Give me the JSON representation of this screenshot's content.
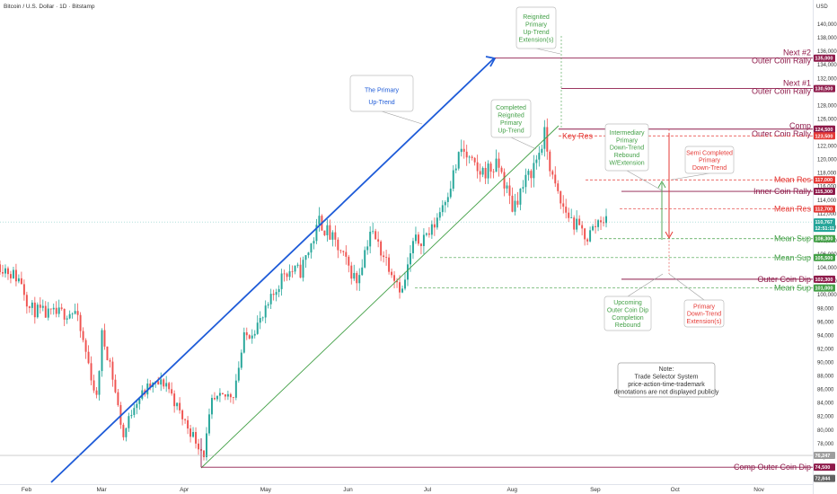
{
  "header": {
    "symbol_title": "Bitcoin / U.S. Dollar · 1D · Bitstamp",
    "currency": "USD"
  },
  "colors": {
    "up": "#26a69a",
    "down": "#ef5350",
    "blue": "#1e5bd8",
    "green": "#43a047",
    "maroon": "#8e1a4a",
    "red": "#e53935"
  },
  "chart_data": {
    "type": "candlestick",
    "title": "",
    "ylim": [
      72000,
      142000
    ],
    "y_ticks": [
      76000,
      78000,
      80000,
      82000,
      84000,
      86000,
      88000,
      90000,
      92000,
      94000,
      96000,
      98000,
      100000,
      102000,
      104000,
      106000,
      108000,
      110000,
      112000,
      114000,
      116000,
      118000,
      120000,
      122000,
      126000,
      128000,
      132000,
      134000,
      136000,
      138000,
      140000
    ],
    "x_ticks": [
      "Feb",
      "Mar",
      "Apr",
      "May",
      "Jun",
      "Jul",
      "Aug",
      "Sep",
      "Oct",
      "Nov"
    ],
    "anchors": [
      [
        "2025-01-23",
        104500
      ],
      [
        "2025-01-31",
        102000
      ],
      [
        "2025-02-03",
        98000
      ],
      [
        "2025-02-10",
        97000
      ],
      [
        "2025-02-20",
        97500
      ],
      [
        "2025-02-24",
        91500
      ],
      [
        "2025-02-28",
        84500
      ],
      [
        "2025-03-02",
        94000
      ],
      [
        "2025-03-05",
        90000
      ],
      [
        "2025-03-10",
        79000
      ],
      [
        "2025-03-14",
        84000
      ],
      [
        "2025-03-20",
        86500
      ],
      [
        "2025-03-26",
        87000
      ],
      [
        "2025-03-31",
        82500
      ],
      [
        "2025-04-06",
        78500
      ],
      [
        "2025-04-09",
        76500
      ],
      [
        "2025-04-12",
        84000
      ],
      [
        "2025-04-20",
        85500
      ],
      [
        "2025-04-24",
        93500
      ],
      [
        "2025-05-01",
        96500
      ],
      [
        "2025-05-09",
        103500
      ],
      [
        "2025-05-15",
        103500
      ],
      [
        "2025-05-21",
        109500
      ],
      [
        "2025-05-22",
        111000
      ],
      [
        "2025-05-28",
        107500
      ],
      [
        "2025-06-05",
        102000
      ],
      [
        "2025-06-10",
        109500
      ],
      [
        "2025-06-17",
        104500
      ],
      [
        "2025-06-22",
        100500
      ],
      [
        "2025-06-26",
        107500
      ],
      [
        "2025-07-03",
        109500
      ],
      [
        "2025-07-10",
        116500
      ],
      [
        "2025-07-14",
        121500
      ],
      [
        "2025-07-20",
        118000
      ],
      [
        "2025-07-28",
        119000
      ],
      [
        "2025-08-02",
        113000
      ],
      [
        "2025-08-08",
        117500
      ],
      [
        "2025-08-11",
        120000
      ],
      [
        "2025-08-14",
        123500
      ],
      [
        "2025-08-17",
        117000
      ],
      [
        "2025-08-20",
        113500
      ],
      [
        "2025-08-25",
        110500
      ],
      [
        "2025-08-30",
        108500
      ],
      [
        "2025-09-04",
        111500
      ],
      [
        "2025-09-06",
        110767
      ]
    ],
    "levels": [
      {
        "name": "Next #2 Outer Coin Rally",
        "price": 135000,
        "tag": "135,000",
        "color": "#8e1a4a"
      },
      {
        "name": "Next #1 Outer Coin Rally",
        "price": 130500,
        "tag": "130,500",
        "color": "#8e1a4a"
      },
      {
        "name": "Comp Outer Coin Rally",
        "price": 124500,
        "tag": "124,500",
        "color": "#8e1a4a"
      },
      {
        "name": "Key Res",
        "price": 123500,
        "tag": "123,500",
        "color": "#e53935"
      },
      {
        "name": "Mean Res",
        "price": 117000,
        "tag": "117,000",
        "color": "#e53935"
      },
      {
        "name": "Inner Coin Rally",
        "price": 115300,
        "tag": "115,300",
        "color": "#8e1a4a"
      },
      {
        "name": "Mean Res",
        "price": 112700,
        "tag": "112,700",
        "color": "#e53935"
      },
      {
        "name": "Mean Sup",
        "price": 108300,
        "tag": "108,300",
        "color": "#43a047"
      },
      {
        "name": "Mean Sup",
        "price": 105500,
        "tag": "105,500",
        "color": "#43a047"
      },
      {
        "name": "Outer Coin Dip",
        "price": 102300,
        "tag": "102,300",
        "color": "#8e1a4a"
      },
      {
        "name": "Mean Sup",
        "price": 101000,
        "tag": "101,000",
        "color": "#43a047"
      },
      {
        "name": "Comp Outer Coin Dip",
        "price": 74500,
        "tag": "74,500",
        "color": "#8e1a4a"
      }
    ],
    "last_price": {
      "tag": "110,767",
      "timer": "12:51:11"
    },
    "misc_tags": [
      {
        "tag": "76,247",
        "price": 76247
      },
      {
        "tag": "72,844",
        "price": 72844
      }
    ]
  },
  "labels": {
    "next2_a": "Next #2",
    "next2_b": "Outer Coin Rally",
    "next1_a": "Next #1",
    "next1_b": "Outer Coin Rally",
    "comp_a": "Comp",
    "comp_b": "Outer Coin Rally",
    "key_res": "Key Res",
    "mean_res_1": "Mean Res",
    "inner_coin_rally": "Inner Coin Rally",
    "mean_res_2": "Mean Res",
    "mean_sup_1": "Mean Sup",
    "mean_sup_2": "Mean Sup",
    "outer_coin_dip": "Outer Coin Dip",
    "mean_sup_3": "Mean Sup",
    "comp_outer_coin_dip": "Comp Outer Coin Dip"
  },
  "annotations": {
    "primary_uptrend": [
      "The Primary",
      "Up-Trend"
    ],
    "reignited_extension": [
      "Reignited",
      "Primary",
      "Up-Trend",
      "Extension(s)"
    ],
    "completed_reignited": [
      "Completed",
      "Reignited",
      "Primary",
      "Up-Trend"
    ],
    "intermediary": [
      "Intermediary",
      "Primary",
      "Down-Trend",
      "Rebound",
      "W/Extension"
    ],
    "semi_completed": [
      "Semi Completed",
      "Primary",
      "Down-Trend"
    ],
    "upcoming_dip": [
      "Upcoming",
      "Outer Coin Dip",
      "Completion",
      "Rebound"
    ],
    "primary_downtrend_ext": [
      "Primary",
      "Down-Trend",
      "Extension(s)"
    ],
    "note": [
      "Note:",
      "Trade Selector System",
      "price-action-time-trademark",
      "denotations are not displayed publicly"
    ]
  }
}
